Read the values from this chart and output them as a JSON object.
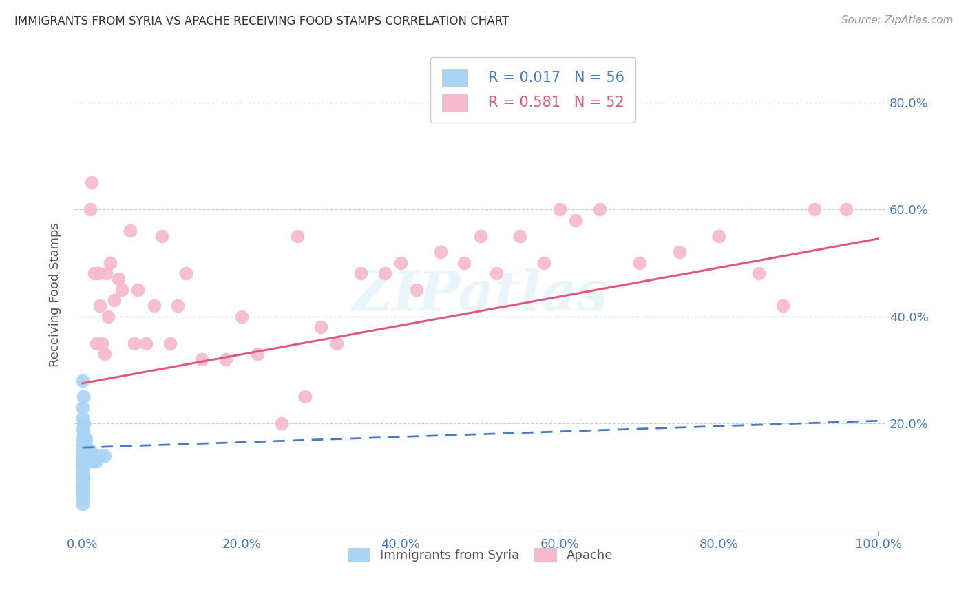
{
  "title": "IMMIGRANTS FROM SYRIA VS APACHE RECEIVING FOOD STAMPS CORRELATION CHART",
  "source": "Source: ZipAtlas.com",
  "ylabel": "Receiving Food Stamps",
  "ytick_labels": [
    "20.0%",
    "40.0%",
    "60.0%",
    "80.0%"
  ],
  "ytick_values": [
    0.2,
    0.4,
    0.6,
    0.8
  ],
  "xtick_labels": [
    "0.0%",
    "20.0%",
    "40.0%",
    "60.0%",
    "80.0%",
    "100.0%"
  ],
  "xtick_values": [
    0.0,
    0.2,
    0.4,
    0.6,
    0.8,
    1.0
  ],
  "legend_label1": "Immigrants from Syria",
  "legend_label2": "Apache",
  "legend_R1": "R = 0.017",
  "legend_N1": "N = 56",
  "legend_R2": "R = 0.581",
  "legend_N2": "N = 52",
  "syria_color": "#a8d4f5",
  "apache_color": "#f5b8cc",
  "syria_line_color": "#4878c8",
  "apache_line_color": "#e05878",
  "background_color": "#ffffff",
  "watermark": "ZIPatlas",
  "syria_x": [
    0.0,
    0.0,
    0.0,
    0.0,
    0.0,
    0.0,
    0.0,
    0.0,
    0.0,
    0.0,
    0.0,
    0.0,
    0.0,
    0.0,
    0.0,
    0.0,
    0.0,
    0.0,
    0.0,
    0.0,
    0.0,
    0.001,
    0.001,
    0.001,
    0.001,
    0.001,
    0.001,
    0.001,
    0.001,
    0.001,
    0.001,
    0.002,
    0.002,
    0.002,
    0.002,
    0.002,
    0.002,
    0.003,
    0.003,
    0.003,
    0.003,
    0.004,
    0.004,
    0.005,
    0.005,
    0.006,
    0.007,
    0.008,
    0.009,
    0.01,
    0.012,
    0.013,
    0.015,
    0.018,
    0.022,
    0.028
  ],
  "syria_y": [
    0.05,
    0.07,
    0.08,
    0.09,
    0.1,
    0.11,
    0.12,
    0.13,
    0.14,
    0.15,
    0.16,
    0.06,
    0.08,
    0.1,
    0.12,
    0.14,
    0.17,
    0.19,
    0.21,
    0.23,
    0.28,
    0.1,
    0.12,
    0.13,
    0.14,
    0.15,
    0.16,
    0.17,
    0.18,
    0.2,
    0.25,
    0.13,
    0.14,
    0.15,
    0.16,
    0.17,
    0.2,
    0.14,
    0.15,
    0.16,
    0.17,
    0.14,
    0.16,
    0.14,
    0.17,
    0.15,
    0.14,
    0.15,
    0.14,
    0.15,
    0.14,
    0.13,
    0.13,
    0.13,
    0.14,
    0.14
  ],
  "apache_x": [
    0.01,
    0.012,
    0.015,
    0.018,
    0.02,
    0.022,
    0.025,
    0.028,
    0.03,
    0.032,
    0.035,
    0.04,
    0.045,
    0.05,
    0.06,
    0.065,
    0.07,
    0.08,
    0.09,
    0.1,
    0.11,
    0.12,
    0.13,
    0.15,
    0.18,
    0.2,
    0.22,
    0.25,
    0.27,
    0.28,
    0.3,
    0.32,
    0.35,
    0.38,
    0.4,
    0.42,
    0.45,
    0.48,
    0.5,
    0.52,
    0.55,
    0.58,
    0.6,
    0.62,
    0.65,
    0.7,
    0.75,
    0.8,
    0.85,
    0.88,
    0.92,
    0.96
  ],
  "apache_y": [
    0.6,
    0.65,
    0.48,
    0.35,
    0.48,
    0.42,
    0.35,
    0.33,
    0.48,
    0.4,
    0.5,
    0.43,
    0.47,
    0.45,
    0.56,
    0.35,
    0.45,
    0.35,
    0.42,
    0.55,
    0.35,
    0.42,
    0.48,
    0.32,
    0.32,
    0.4,
    0.33,
    0.2,
    0.55,
    0.25,
    0.38,
    0.35,
    0.48,
    0.48,
    0.5,
    0.45,
    0.52,
    0.5,
    0.55,
    0.48,
    0.55,
    0.5,
    0.6,
    0.58,
    0.6,
    0.5,
    0.52,
    0.55,
    0.48,
    0.42,
    0.6,
    0.6
  ],
  "xlim": [
    -0.01,
    1.01
  ],
  "ylim": [
    0.0,
    0.88
  ],
  "syria_line_x": [
    0.0,
    1.0
  ],
  "syria_line_y": [
    0.155,
    0.205
  ],
  "apache_line_x": [
    0.0,
    1.0
  ],
  "apache_line_y": [
    0.275,
    0.545
  ]
}
